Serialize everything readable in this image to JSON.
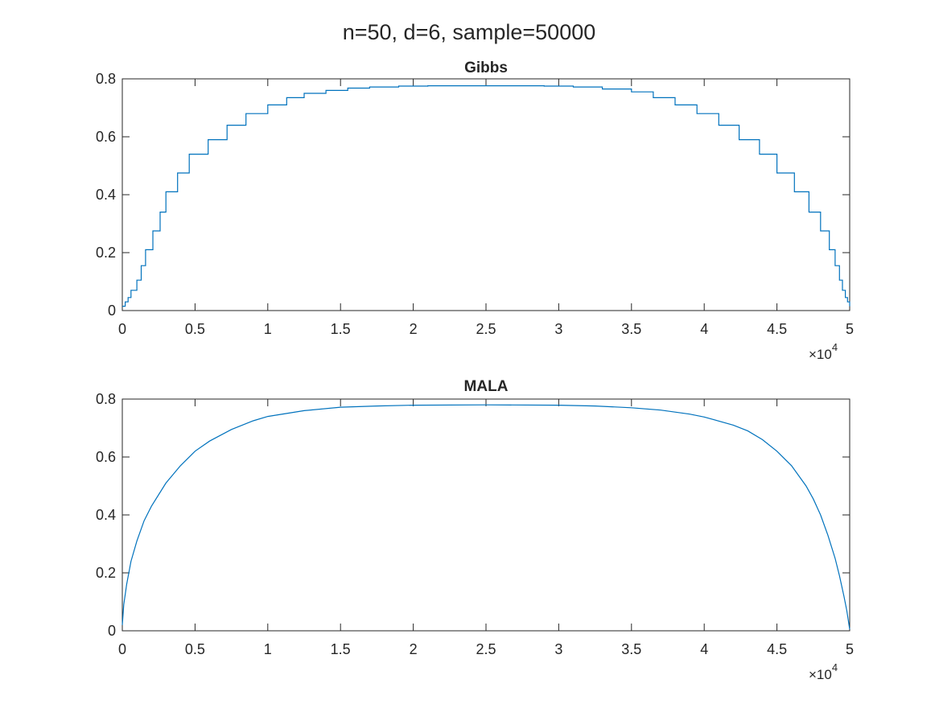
{
  "figure": {
    "title": "n=50, d=6, sample=50000"
  },
  "chart_data": [
    {
      "type": "line",
      "title": "Gibbs",
      "xlabel": "",
      "ylabel": "",
      "xlim": [
        0,
        50000
      ],
      "ylim": [
        0,
        0.8
      ],
      "xticks": [
        0,
        5000,
        10000,
        15000,
        20000,
        25000,
        30000,
        35000,
        40000,
        45000,
        50000
      ],
      "xtick_labels": [
        "0",
        "0.5",
        "1",
        "1.5",
        "2",
        "2.5",
        "3",
        "3.5",
        "4",
        "4.5",
        "5"
      ],
      "yticks": [
        0,
        0.2,
        0.4,
        0.6,
        0.8
      ],
      "ytick_labels": [
        "0",
        "0.2",
        "0.4",
        "0.6",
        "0.8"
      ],
      "x_exponent": {
        "base": "×10",
        "power": "4"
      },
      "grid": false,
      "line_style": "step",
      "color": "#0072BD",
      "series": [
        {
          "x": [
            0,
            200,
            400,
            600,
            800,
            1000,
            1300,
            1600,
            2100,
            2600,
            3000,
            3800,
            4600,
            5900,
            7200,
            8500,
            10000,
            11300,
            12500,
            14000,
            15500,
            17000,
            19000,
            21000,
            25000,
            29000,
            31000,
            33000,
            35000,
            36500,
            38000,
            39500,
            41000,
            42400,
            43800,
            45000,
            46200,
            47200,
            48000,
            48600,
            49000,
            49300,
            49500,
            49700,
            49850,
            50000
          ],
          "y": [
            0.015,
            0.03,
            0.045,
            0.07,
            0.07,
            0.105,
            0.155,
            0.21,
            0.275,
            0.34,
            0.41,
            0.475,
            0.54,
            0.59,
            0.64,
            0.68,
            0.71,
            0.735,
            0.75,
            0.76,
            0.768,
            0.772,
            0.775,
            0.776,
            0.776,
            0.775,
            0.772,
            0.765,
            0.755,
            0.735,
            0.71,
            0.68,
            0.64,
            0.59,
            0.54,
            0.475,
            0.41,
            0.34,
            0.275,
            0.21,
            0.155,
            0.105,
            0.07,
            0.045,
            0.03,
            0.015
          ]
        }
      ]
    },
    {
      "type": "line",
      "title": "MALA",
      "xlabel": "",
      "ylabel": "",
      "xlim": [
        0,
        50000
      ],
      "ylim": [
        0,
        0.8
      ],
      "xticks": [
        0,
        5000,
        10000,
        15000,
        20000,
        25000,
        30000,
        35000,
        40000,
        45000,
        50000
      ],
      "xtick_labels": [
        "0",
        "0.5",
        "1",
        "1.5",
        "2",
        "2.5",
        "3",
        "3.5",
        "4",
        "4.5",
        "5"
      ],
      "yticks": [
        0,
        0.2,
        0.4,
        0.6,
        0.8
      ],
      "ytick_labels": [
        "0",
        "0.2",
        "0.4",
        "0.6",
        "0.8"
      ],
      "x_exponent": {
        "base": "×10",
        "power": "4"
      },
      "grid": false,
      "line_style": "smooth",
      "color": "#0072BD",
      "series": [
        {
          "x": [
            0,
            100,
            300,
            600,
            1000,
            1500,
            2000,
            3000,
            4000,
            5000,
            6000,
            7500,
            9000,
            10000,
            12500,
            15000,
            17500,
            20000,
            25000,
            30000,
            32500,
            35000,
            37000,
            39000,
            40000,
            42000,
            43000,
            44000,
            45000,
            46000,
            47000,
            47500,
            48000,
            48500,
            49000,
            49300,
            49600,
            49800,
            50000
          ],
          "y": [
            0.02,
            0.09,
            0.16,
            0.24,
            0.31,
            0.38,
            0.43,
            0.51,
            0.57,
            0.62,
            0.655,
            0.695,
            0.725,
            0.74,
            0.76,
            0.772,
            0.776,
            0.779,
            0.78,
            0.779,
            0.776,
            0.77,
            0.762,
            0.748,
            0.738,
            0.71,
            0.69,
            0.66,
            0.62,
            0.57,
            0.5,
            0.455,
            0.4,
            0.33,
            0.25,
            0.19,
            0.12,
            0.07,
            0.005
          ]
        }
      ]
    }
  ]
}
